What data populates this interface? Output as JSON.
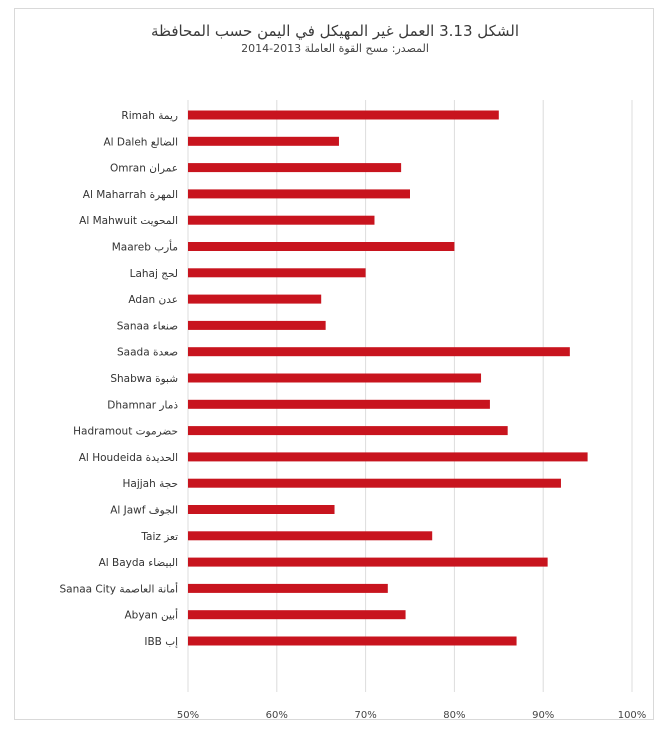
{
  "chart_data": {
    "type": "bar",
    "orientation": "horizontal",
    "title": "الشكل 3.13 العمل غير المهيكل في اليمن حسب المحافظة",
    "title_number": "3.13",
    "subtitle": "المصدر: مسح القوة العاملة 2013-2014",
    "categories": [
      "Rimah ريمة",
      "Al Daleh الضالع",
      "Omran عمران",
      "Al Maharrah المهرة",
      "Al Mahwuit المحويت",
      "Maareb مأرب",
      "Lahaj لحج",
      "Adan عدن",
      "Sanaa صنعاء",
      "Saada صعدة",
      "Shabwa شبوة",
      "Dhamnar ذمار",
      "Hadramout حضرموت",
      "Al Houdeida الحديدة",
      "Hajjah حجة",
      "Al Jawf الجوف",
      "Taiz تعز",
      "Al Bayda البيضاء",
      "Sanaa City أمانة العاصمة",
      "Abyan أبين",
      "IBB إب"
    ],
    "values": [
      85,
      67,
      74,
      75,
      71,
      80,
      70,
      65,
      65.5,
      93,
      83,
      84,
      86,
      95,
      92,
      66.5,
      77.5,
      90.5,
      72.5,
      74.5,
      87
    ],
    "xlim": [
      50,
      100
    ],
    "xticks": [
      50,
      60,
      70,
      80,
      90,
      100
    ],
    "xtick_labels": [
      "50%",
      "60%",
      "70%",
      "80%",
      "90%",
      "100%"
    ],
    "grid": "vertical",
    "legend": "none",
    "bar_color": "#c8141e"
  }
}
